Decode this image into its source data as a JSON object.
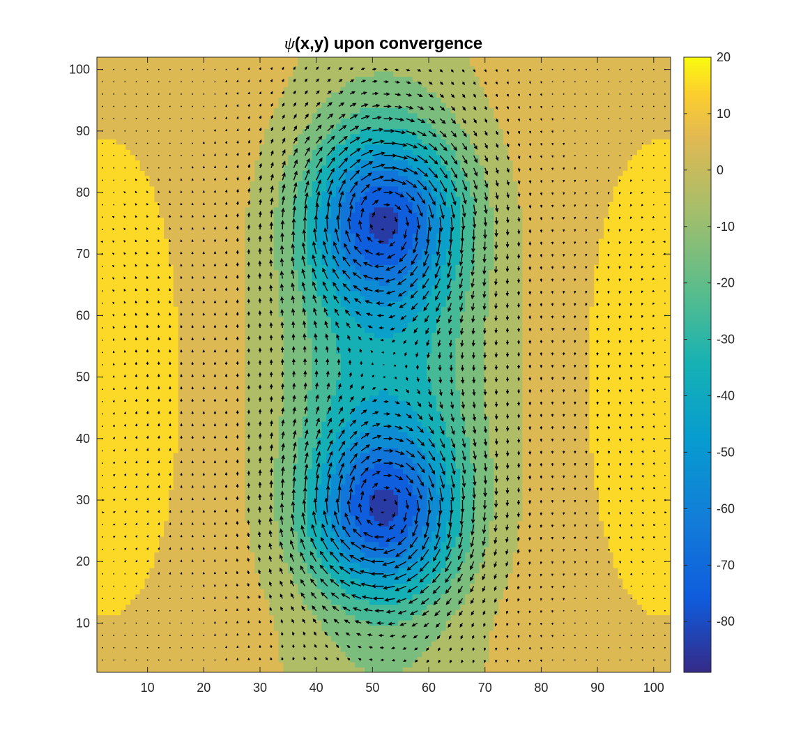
{
  "chart_data": {
    "type": "heatmap",
    "subtype": "filled-contour-with-quiver",
    "title": {
      "symbol": "ψ",
      "rest": "(x,y) upon convergence"
    },
    "xlabel": "",
    "ylabel": "",
    "xlim": [
      1,
      103
    ],
    "ylim": [
      2,
      102
    ],
    "xticks": [
      10,
      20,
      30,
      40,
      50,
      60,
      70,
      80,
      90,
      100
    ],
    "yticks": [
      10,
      20,
      30,
      40,
      50,
      60,
      70,
      80,
      90,
      100
    ],
    "xtick_labels": [
      "10",
      "20",
      "30",
      "40",
      "50",
      "60",
      "70",
      "80",
      "90",
      "100"
    ],
    "ytick_labels": [
      "10",
      "20",
      "30",
      "40",
      "50",
      "60",
      "70",
      "80",
      "90",
      "100"
    ],
    "colorbar": {
      "range": [
        -89,
        20
      ],
      "ticks": [
        20,
        10,
        0,
        -10,
        -20,
        -30,
        -40,
        -50,
        -60,
        -70,
        -80
      ],
      "tick_labels": [
        "20",
        "10",
        "0",
        "-10",
        "-20",
        "-30",
        "-40",
        "-50",
        "-60",
        "-70",
        "-80"
      ],
      "colormap": "parula"
    },
    "contour_levels": [
      -80,
      -70,
      -60,
      -50,
      -40,
      -30,
      -20,
      -10,
      0,
      10
    ],
    "field": {
      "description": "streamfunction with two counter-clockwise vortices",
      "vortices": [
        {
          "x": 52,
          "y": 76,
          "min_value": -88
        },
        {
          "x": 52,
          "y": 28,
          "min_value": -88
        }
      ],
      "side_maxima": [
        {
          "x": 2,
          "y": 50,
          "value": 18
        },
        {
          "x": 102,
          "y": 50,
          "value": 18
        }
      ]
    },
    "quiver": {
      "grid_spacing": 2,
      "x_range": [
        2,
        102
      ],
      "y_range": [
        4,
        100
      ],
      "color": "#000000"
    }
  }
}
